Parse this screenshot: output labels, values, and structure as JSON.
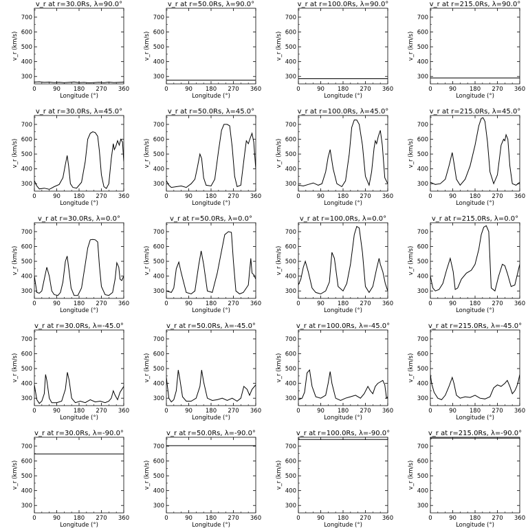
{
  "chart_data": [
    {
      "type": "line",
      "title": "v_r at r=30.0Rs, λ=90.0°",
      "xlabel": "Longitude (°)",
      "ylabel": "v_r (km/s)",
      "xlim": [
        0,
        360
      ],
      "ylim": [
        250,
        760
      ],
      "xticks": [
        0,
        90,
        180,
        270,
        360
      ],
      "yticks": [
        300,
        400,
        500,
        600,
        700
      ],
      "x": [
        0,
        20,
        40,
        60,
        80,
        100,
        120,
        140,
        160,
        180,
        200,
        220,
        240,
        260,
        280,
        300,
        320,
        340,
        360
      ],
      "y": [
        262,
        264,
        260,
        262,
        259,
        261,
        258,
        260,
        263,
        258,
        260,
        257,
        259,
        261,
        258,
        262,
        259,
        260,
        262
      ]
    },
    {
      "type": "line",
      "title": "v_r at r=50.0Rs, λ=90.0°",
      "xlabel": "Longitude (°)",
      "ylabel": "v_r (km/s)",
      "xlim": [
        0,
        360
      ],
      "ylim": [
        250,
        760
      ],
      "xticks": [
        0,
        90,
        180,
        270,
        360
      ],
      "yticks": [
        300,
        400,
        500,
        600,
        700
      ],
      "x": [
        0,
        360
      ],
      "y": [
        275,
        275
      ]
    },
    {
      "type": "line",
      "title": "v_r at r=100.0Rs, λ=90.0°",
      "xlabel": "Longitude (°)",
      "ylabel": "v_r (km/s)",
      "xlim": [
        0,
        360
      ],
      "ylim": [
        250,
        760
      ],
      "xticks": [
        0,
        90,
        180,
        270,
        360
      ],
      "yticks": [
        300,
        400,
        500,
        600,
        700
      ],
      "x": [
        0,
        360
      ],
      "y": [
        285,
        285
      ]
    },
    {
      "type": "line",
      "title": "v_r at r=215.0Rs, λ=90.0°",
      "xlabel": "Longitude (°)",
      "ylabel": "v_r (km/s)",
      "xlim": [
        0,
        360
      ],
      "ylim": [
        250,
        760
      ],
      "xticks": [
        0,
        90,
        180,
        270,
        360
      ],
      "yticks": [
        300,
        400,
        500,
        600,
        700
      ],
      "x": [
        0,
        360
      ],
      "y": [
        290,
        290
      ]
    },
    {
      "type": "line",
      "title": "v_r at r=30.0Rs, λ=45.0°",
      "xlabel": "Longitude (°)",
      "ylabel": "v_r (km/s)",
      "xlim": [
        0,
        360
      ],
      "ylim": [
        250,
        760
      ],
      "xticks": [
        0,
        90,
        180,
        270,
        360
      ],
      "yticks": [
        300,
        400,
        500,
        600,
        700
      ],
      "x": [
        0,
        10,
        20,
        40,
        60,
        80,
        100,
        115,
        125,
        132,
        138,
        145,
        155,
        170,
        190,
        205,
        215,
        225,
        235,
        245,
        255,
        262,
        270,
        280,
        290,
        300,
        310,
        318,
        322,
        328,
        335,
        342,
        348,
        355,
        360
      ],
      "y": [
        320,
        285,
        265,
        270,
        262,
        280,
        295,
        340,
        430,
        490,
        420,
        300,
        275,
        270,
        310,
        450,
        600,
        640,
        650,
        645,
        620,
        520,
        360,
        280,
        268,
        300,
        470,
        570,
        530,
        550,
        590,
        560,
        600,
        580,
        450
      ]
    },
    {
      "type": "line",
      "title": "v_r at r=50.0Rs, λ=45.0°",
      "xlabel": "Longitude (°)",
      "ylabel": "v_r (km/s)",
      "xlim": [
        0,
        360
      ],
      "ylim": [
        250,
        760
      ],
      "xticks": [
        0,
        90,
        180,
        270,
        360
      ],
      "yticks": [
        300,
        400,
        500,
        600,
        700
      ],
      "x": [
        0,
        10,
        20,
        40,
        60,
        80,
        100,
        115,
        125,
        135,
        142,
        150,
        160,
        180,
        195,
        210,
        222,
        232,
        245,
        255,
        265,
        275,
        285,
        300,
        315,
        322,
        330,
        338,
        345,
        352,
        360
      ],
      "y": [
        320,
        290,
        275,
        280,
        285,
        275,
        300,
        330,
        410,
        500,
        470,
        340,
        290,
        285,
        330,
        520,
        660,
        700,
        700,
        690,
        550,
        350,
        280,
        290,
        500,
        590,
        570,
        610,
        640,
        580,
        400
      ]
    },
    {
      "type": "line",
      "title": "v_r at r=100.0Rs, λ=45.0°",
      "xlabel": "Longitude (°)",
      "ylabel": "v_r (km/s)",
      "xlim": [
        0,
        360
      ],
      "ylim": [
        250,
        760
      ],
      "xticks": [
        0,
        90,
        180,
        270,
        360
      ],
      "yticks": [
        300,
        400,
        500,
        600,
        700
      ],
      "x": [
        0,
        20,
        40,
        60,
        80,
        95,
        110,
        120,
        128,
        140,
        155,
        175,
        190,
        205,
        215,
        225,
        235,
        245,
        258,
        270,
        285,
        295,
        305,
        310,
        315,
        322,
        330,
        338,
        348,
        360
      ],
      "y": [
        290,
        285,
        295,
        305,
        290,
        300,
        380,
        480,
        530,
        400,
        300,
        280,
        320,
        500,
        680,
        730,
        730,
        700,
        560,
        350,
        290,
        380,
        540,
        590,
        570,
        620,
        660,
        560,
        340,
        300
      ]
    },
    {
      "type": "line",
      "title": "v_r at r=215.0Rs, λ=45.0°",
      "xlabel": "Longitude (°)",
      "ylabel": "v_r (km/s)",
      "xlim": [
        0,
        360
      ],
      "ylim": [
        250,
        760
      ],
      "xticks": [
        0,
        90,
        180,
        270,
        360
      ],
      "yticks": [
        300,
        400,
        500,
        600,
        700
      ],
      "x": [
        0,
        20,
        40,
        60,
        75,
        88,
        95,
        105,
        120,
        140,
        160,
        180,
        195,
        205,
        212,
        220,
        230,
        240,
        255,
        270,
        285,
        295,
        300,
        305,
        312,
        320,
        330,
        345,
        360
      ],
      "y": [
        310,
        295,
        300,
        330,
        420,
        510,
        440,
        330,
        290,
        330,
        420,
        560,
        690,
        740,
        745,
        720,
        580,
        380,
        300,
        360,
        560,
        600,
        590,
        630,
        600,
        420,
        300,
        290,
        310
      ]
    },
    {
      "type": "line",
      "title": "v_r at r=30.0Rs, λ=0.0°",
      "xlabel": "Longitude (°)",
      "ylabel": "v_r (km/s)",
      "xlim": [
        0,
        360
      ],
      "ylim": [
        250,
        760
      ],
      "xticks": [
        0,
        90,
        180,
        270,
        360
      ],
      "yticks": [
        300,
        400,
        500,
        600,
        700
      ],
      "x": [
        0,
        10,
        20,
        30,
        40,
        50,
        60,
        70,
        80,
        95,
        105,
        115,
        125,
        132,
        140,
        148,
        160,
        175,
        190,
        205,
        215,
        225,
        235,
        245,
        255,
        262,
        270,
        285,
        300,
        315,
        325,
        332,
        340,
        345,
        352,
        360
      ],
      "y": [
        400,
        290,
        285,
        300,
        380,
        460,
        400,
        300,
        275,
        270,
        290,
        360,
        500,
        535,
        430,
        320,
        270,
        270,
        320,
        480,
        590,
        645,
        648,
        645,
        630,
        470,
        330,
        275,
        270,
        290,
        380,
        490,
        460,
        380,
        370,
        400
      ]
    },
    {
      "type": "line",
      "title": "v_r at r=50.0Rs, λ=0.0°",
      "xlabel": "Longitude (°)",
      "ylabel": "v_r (km/s)",
      "xlim": [
        0,
        360
      ],
      "ylim": [
        250,
        760
      ],
      "xticks": [
        0,
        90,
        180,
        270,
        360
      ],
      "yticks": [
        300,
        400,
        500,
        600,
        700
      ],
      "x": [
        0,
        20,
        30,
        40,
        50,
        60,
        80,
        100,
        115,
        130,
        140,
        150,
        165,
        185,
        205,
        220,
        235,
        250,
        262,
        270,
        280,
        295,
        310,
        330,
        340,
        345,
        352,
        360
      ],
      "y": [
        300,
        290,
        320,
        450,
        495,
        420,
        290,
        280,
        300,
        470,
        570,
        480,
        300,
        290,
        420,
        550,
        680,
        700,
        695,
        500,
        300,
        280,
        290,
        340,
        520,
        420,
        410,
        380
      ]
    },
    {
      "type": "line",
      "title": "v_r at r=100.0Rs, λ=0.0°",
      "xlabel": "Longitude (°)",
      "ylabel": "v_r (km/s)",
      "xlim": [
        0,
        360
      ],
      "ylim": [
        250,
        760
      ],
      "xticks": [
        0,
        90,
        180,
        270,
        360
      ],
      "yticks": [
        300,
        400,
        500,
        600,
        700
      ],
      "x": [
        0,
        10,
        20,
        28,
        40,
        55,
        70,
        90,
        110,
        125,
        135,
        145,
        160,
        180,
        195,
        210,
        225,
        235,
        245,
        258,
        270,
        285,
        300,
        315,
        325,
        330,
        340,
        350,
        360
      ],
      "y": [
        340,
        380,
        460,
        500,
        430,
        320,
        290,
        280,
        300,
        360,
        560,
        520,
        330,
        300,
        350,
        480,
        680,
        735,
        725,
        560,
        330,
        290,
        330,
        450,
        520,
        480,
        430,
        350,
        300
      ]
    },
    {
      "type": "line",
      "title": "v_r at r=215.0Rs, λ=0.0°",
      "xlabel": "Longitude (°)",
      "ylabel": "v_r (km/s)",
      "xlim": [
        0,
        360
      ],
      "ylim": [
        250,
        760
      ],
      "xticks": [
        0,
        90,
        180,
        270,
        360
      ],
      "yticks": [
        300,
        400,
        500,
        600,
        700
      ],
      "x": [
        0,
        10,
        20,
        35,
        50,
        65,
        80,
        92,
        100,
        110,
        125,
        145,
        165,
        180,
        195,
        205,
        215,
        225,
        235,
        245,
        260,
        275,
        290,
        300,
        310,
        325,
        340,
        360
      ],
      "y": [
        400,
        320,
        300,
        310,
        350,
        440,
        520,
        430,
        310,
        320,
        380,
        420,
        440,
        480,
        580,
        680,
        730,
        740,
        700,
        320,
        300,
        400,
        480,
        470,
        420,
        330,
        340,
        480
      ]
    },
    {
      "type": "line",
      "title": "v_r at r=30.0Rs, λ=-45.0°",
      "xlabel": "Longitude (°)",
      "ylabel": "v_r (km/s)",
      "xlim": [
        0,
        360
      ],
      "ylim": [
        250,
        760
      ],
      "xticks": [
        0,
        90,
        180,
        270,
        360
      ],
      "yticks": [
        300,
        400,
        500,
        600,
        700
      ],
      "x": [
        0,
        10,
        20,
        30,
        40,
        45,
        50,
        60,
        70,
        90,
        110,
        125,
        133,
        140,
        150,
        165,
        185,
        205,
        225,
        245,
        265,
        285,
        300,
        310,
        318,
        325,
        335,
        345,
        360
      ],
      "y": [
        390,
        290,
        265,
        280,
        330,
        460,
        420,
        300,
        270,
        270,
        280,
        360,
        475,
        420,
        300,
        270,
        280,
        270,
        290,
        275,
        280,
        270,
        280,
        300,
        350,
        320,
        290,
        340,
        380
      ]
    },
    {
      "type": "line",
      "title": "v_r at r=50.0Rs, λ=-45.0°",
      "xlabel": "Longitude (°)",
      "ylabel": "v_r (km/s)",
      "xlim": [
        0,
        360
      ],
      "ylim": [
        250,
        760
      ],
      "xticks": [
        0,
        90,
        180,
        270,
        360
      ],
      "yticks": [
        300,
        400,
        500,
        600,
        700
      ],
      "x": [
        0,
        10,
        20,
        30,
        40,
        48,
        55,
        65,
        80,
        100,
        120,
        135,
        142,
        150,
        165,
        185,
        205,
        225,
        245,
        265,
        285,
        300,
        312,
        325,
        335,
        345,
        360
      ],
      "y": [
        440,
        300,
        275,
        290,
        350,
        490,
        420,
        310,
        280,
        280,
        300,
        380,
        490,
        410,
        300,
        285,
        290,
        300,
        285,
        300,
        280,
        300,
        380,
        360,
        320,
        360,
        390
      ]
    },
    {
      "type": "line",
      "title": "v_r at r=100.0Rs, λ=-45.0°",
      "xlabel": "Longitude (°)",
      "ylabel": "v_r (km/s)",
      "xlim": [
        0,
        360
      ],
      "ylim": [
        250,
        760
      ],
      "xticks": [
        0,
        90,
        180,
        270,
        360
      ],
      "yticks": [
        300,
        400,
        500,
        600,
        700
      ],
      "x": [
        0,
        15,
        25,
        35,
        45,
        55,
        70,
        90,
        110,
        120,
        128,
        135,
        150,
        170,
        190,
        210,
        230,
        250,
        265,
        280,
        290,
        300,
        310,
        320,
        330,
        340,
        348,
        355,
        360
      ],
      "y": [
        290,
        300,
        340,
        470,
        490,
        380,
        310,
        300,
        320,
        400,
        480,
        400,
        300,
        285,
        300,
        310,
        320,
        300,
        330,
        380,
        350,
        330,
        380,
        400,
        410,
        420,
        390,
        300,
        310
      ]
    },
    {
      "type": "line",
      "title": "v_r at r=215.0Rs, λ=-45.0°",
      "xlabel": "Longitude (°)",
      "ylabel": "v_r (km/s)",
      "xlim": [
        0,
        360
      ],
      "ylim": [
        250,
        760
      ],
      "xticks": [
        0,
        90,
        180,
        270,
        360
      ],
      "yticks": [
        300,
        400,
        500,
        600,
        700
      ],
      "x": [
        0,
        5,
        15,
        30,
        45,
        60,
        75,
        88,
        95,
        105,
        120,
        140,
        160,
        180,
        200,
        220,
        240,
        255,
        270,
        285,
        300,
        310,
        320,
        330,
        340,
        348,
        355,
        360
      ],
      "y": [
        460,
        400,
        340,
        300,
        290,
        320,
        380,
        440,
        400,
        320,
        300,
        310,
        305,
        320,
        300,
        295,
        310,
        370,
        390,
        380,
        400,
        420,
        380,
        330,
        350,
        380,
        420,
        460
      ]
    },
    {
      "type": "line",
      "title": "v_r at r=30.0Rs, λ=-90.0°",
      "xlabel": "Longitude (°)",
      "ylabel": "v_r (km/s)",
      "xlim": [
        0,
        360
      ],
      "ylim": [
        250,
        760
      ],
      "xticks": [
        0,
        90,
        180,
        270,
        360
      ],
      "yticks": [
        300,
        400,
        500,
        600,
        700
      ],
      "x": [
        0,
        360
      ],
      "y": [
        648,
        648
      ]
    },
    {
      "type": "line",
      "title": "v_r at r=50.0Rs, λ=-90.0°",
      "xlabel": "Longitude (°)",
      "ylabel": "v_r (km/s)",
      "xlim": [
        0,
        360
      ],
      "ylim": [
        250,
        760
      ],
      "xticks": [
        0,
        90,
        180,
        270,
        360
      ],
      "yticks": [
        300,
        400,
        500,
        600,
        700
      ],
      "x": [
        0,
        360
      ],
      "y": [
        703,
        703
      ]
    },
    {
      "type": "line",
      "title": "v_r at r=100.0Rs, λ=-90.0°",
      "xlabel": "Longitude (°)",
      "ylabel": "v_r (km/s)",
      "xlim": [
        0,
        360
      ],
      "ylim": [
        250,
        760
      ],
      "xticks": [
        0,
        90,
        180,
        270,
        360
      ],
      "yticks": [
        300,
        400,
        500,
        600,
        700
      ],
      "x": [
        0,
        360
      ],
      "y": [
        745,
        745
      ]
    },
    {
      "type": "line",
      "title": "v_r at r=215.0Rs, λ=-90.0°",
      "xlabel": "Longitude (°)",
      "ylabel": "v_r (km/s)",
      "xlim": [
        0,
        360
      ],
      "ylim": [
        250,
        760
      ],
      "xticks": [
        0,
        90,
        180,
        270,
        360
      ],
      "yticks": [
        300,
        400,
        500,
        600,
        700
      ],
      "x": [
        0,
        360
      ],
      "y": [
        754,
        754
      ]
    }
  ]
}
